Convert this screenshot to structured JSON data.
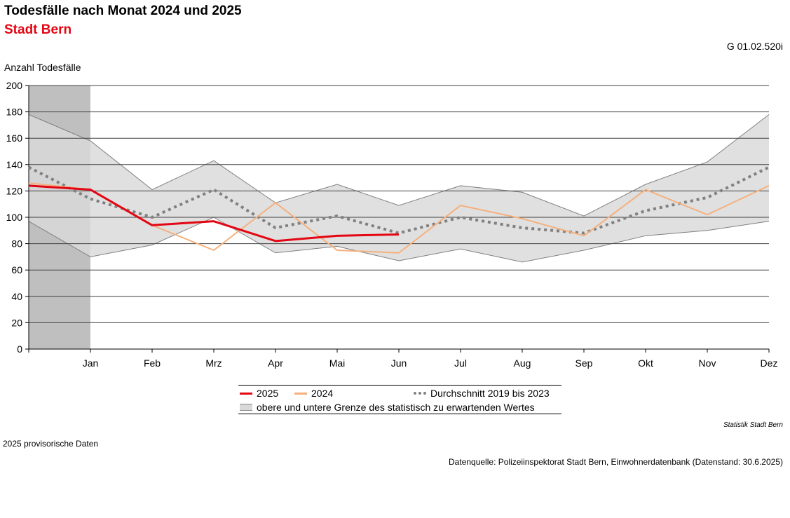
{
  "header": {
    "title": "Todesfälle nach Monat 2024 und 2025",
    "subtitle": "Stadt Bern",
    "code": "G 01.02.520i"
  },
  "colors": {
    "s2025": "#e30613",
    "s2024": "#f5b07d",
    "avg": "#808080",
    "band": "#d9d9d9",
    "band_edge": "#808080",
    "shade": "#bfbfbf",
    "grid": "#000000"
  },
  "chart_data": {
    "type": "line",
    "title": "Todesfälle nach Monat 2024 und 2025",
    "subtitle": "Stadt Bern",
    "ylabel": "Anzahl Todesfälle",
    "ylim": [
      0,
      200
    ],
    "yticks": [
      0,
      20,
      40,
      60,
      80,
      100,
      120,
      140,
      160,
      180,
      200
    ],
    "categories": [
      "Jan",
      "Feb",
      "Mrz",
      "Apr",
      "Mai",
      "Jun",
      "Jul",
      "Aug",
      "Sep",
      "Okt",
      "Nov",
      "Dez"
    ],
    "shaded_interval": [
      0,
      1
    ],
    "series": [
      {
        "name": "2025",
        "x": [
          0,
          1,
          2,
          3,
          4,
          5,
          6
        ],
        "values": [
          124,
          121,
          94,
          97,
          82,
          86,
          87
        ]
      },
      {
        "name": "2024",
        "x": [
          0,
          1,
          2,
          3,
          4,
          5,
          6,
          7,
          8,
          9,
          10,
          11,
          12
        ],
        "values": [
          126,
          121,
          94,
          75,
          111,
          75,
          73,
          109,
          99,
          86,
          121,
          102,
          124
        ]
      },
      {
        "name": "Durchschnitt 2019 bis 2023",
        "x": [
          0,
          1,
          2,
          3,
          4,
          5,
          6,
          7,
          8,
          9,
          10,
          11,
          12
        ],
        "values": [
          138,
          114,
          100,
          121,
          92,
          101,
          88,
          100,
          92,
          88,
          105,
          115,
          138
        ]
      }
    ],
    "band": {
      "name": "obere und untere Grenze des statistisch zu erwartenden Wertes",
      "x": [
        0,
        1,
        2,
        3,
        4,
        5,
        6,
        7,
        8,
        9,
        10,
        11,
        12
      ],
      "upper": [
        178,
        158,
        121,
        143,
        111,
        125,
        109,
        124,
        119,
        101,
        125,
        142,
        178
      ],
      "lower": [
        97,
        70,
        79,
        100,
        73,
        78,
        67,
        76,
        66,
        75,
        86,
        90,
        97
      ]
    },
    "legend_position": "bottom",
    "grid": true
  },
  "legend": {
    "s2025": "2025",
    "s2024": "2024",
    "avg": "Durchschnitt 2019 bis 2023",
    "band": "obere und untere Grenze des statistisch zu erwartenden Wertes"
  },
  "footer": {
    "brand": "Statistik Stadt Bern",
    "note": "2025 provisorische Daten",
    "source": "Datenquelle: Polizeiinspektorat Stadt Bern, Einwohnerdatenbank (Datenstand: 30.6.2025)"
  }
}
